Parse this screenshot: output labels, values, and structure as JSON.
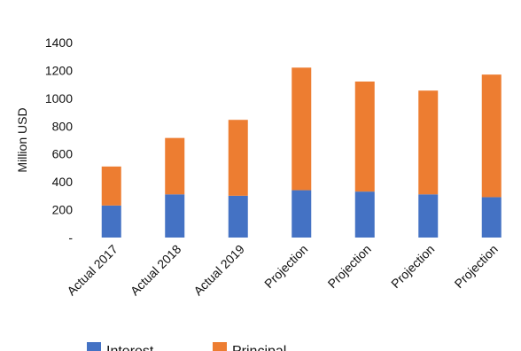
{
  "chart_data": {
    "type": "bar",
    "stacked": true,
    "categories": [
      "Actual 2017",
      "Actual 2018",
      "Actual 2019",
      "Projection",
      "Projection",
      "Projection",
      "Projection"
    ],
    "series": [
      {
        "name": "Interest",
        "values": [
          230,
          310,
          300,
          340,
          330,
          310,
          290
        ],
        "color": "#4472C4"
      },
      {
        "name": "Principal",
        "values": [
          280,
          405,
          545,
          880,
          790,
          745,
          880
        ],
        "color": "#ED7D31"
      }
    ],
    "xlabel": "",
    "ylabel": "Million USD",
    "ylim": [
      0,
      1400
    ],
    "yticks": [
      0,
      200,
      400,
      600,
      800,
      1000,
      1200,
      1400
    ],
    "ytick_labels": [
      "-",
      "200",
      "400",
      "600",
      "800",
      "1000",
      "1200",
      "1400"
    ],
    "grid": false,
    "legend_position": "bottom"
  }
}
